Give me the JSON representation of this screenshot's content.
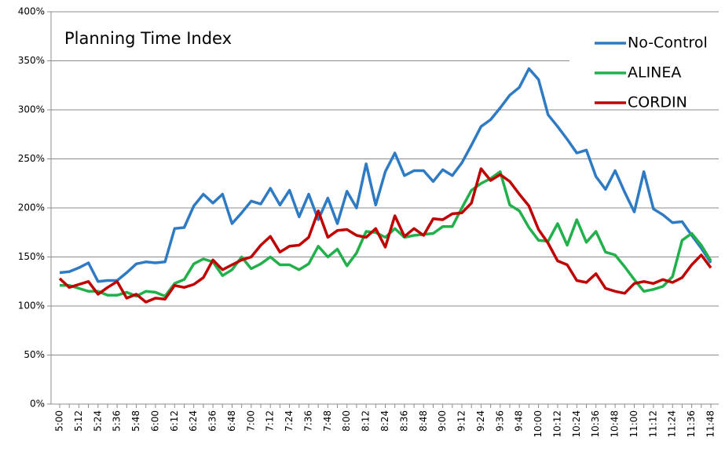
{
  "chart_data": {
    "type": "line",
    "title": "Planning Time Index",
    "categories": [
      "5:00",
      null,
      "5:12",
      null,
      "5:24",
      null,
      "5:36",
      null,
      "5:48",
      null,
      "6:00",
      null,
      "6:12",
      null,
      "6:24",
      null,
      "6:36",
      null,
      "6:48",
      null,
      "7:00",
      null,
      "7:12",
      null,
      "7:24",
      null,
      "7:36",
      null,
      "7:48",
      null,
      "8:00",
      null,
      "8:12",
      null,
      "8:24",
      null,
      "8:36",
      null,
      "8:48",
      null,
      "9:00",
      null,
      "9:12",
      null,
      "9:24",
      null,
      "9:36",
      null,
      "9:48",
      null,
      "10:00",
      null,
      "10:12",
      null,
      "10:24",
      null,
      "10:36",
      null,
      "10:48",
      null,
      "11:00",
      null,
      "11:12",
      null,
      "11:24",
      null,
      "11:36",
      null,
      "11:48"
    ],
    "series": [
      {
        "name": "No-Control",
        "color": "#2e7bc4",
        "values": [
          134,
          135,
          139,
          144,
          125,
          126,
          126,
          134,
          143,
          145,
          144,
          145,
          179,
          180,
          202,
          214,
          205,
          214,
          184,
          195,
          207,
          204,
          220,
          203,
          218,
          191,
          214,
          188,
          210,
          184,
          217,
          200,
          245,
          203,
          237,
          256,
          233,
          238,
          238,
          227,
          239,
          233,
          246,
          264,
          283,
          290,
          302,
          315,
          323,
          342,
          331,
          295,
          283,
          270,
          256,
          259,
          232,
          219,
          238,
          216,
          196,
          237,
          199,
          193,
          185,
          186,
          172,
          159,
          144
        ]
      },
      {
        "name": "ALINEA",
        "color": "#21b04b",
        "values": [
          121,
          121,
          118,
          115,
          115,
          111,
          111,
          114,
          110,
          115,
          114,
          110,
          123,
          127,
          143,
          148,
          145,
          131,
          137,
          150,
          138,
          143,
          150,
          142,
          142,
          137,
          143,
          161,
          150,
          158,
          141,
          154,
          176,
          175,
          170,
          179,
          170,
          172,
          173,
          174,
          181,
          181,
          200,
          218,
          225,
          230,
          237,
          203,
          197,
          180,
          167,
          166,
          184,
          162,
          188,
          165,
          176,
          155,
          152,
          140,
          127,
          115,
          117,
          120,
          130,
          167,
          174,
          162,
          146
        ]
      },
      {
        "name": "CORDIN",
        "color": "#c00000",
        "values": [
          128,
          119,
          122,
          125,
          112,
          119,
          125,
          108,
          112,
          104,
          108,
          107,
          121,
          119,
          122,
          129,
          147,
          137,
          142,
          147,
          150,
          162,
          171,
          155,
          161,
          162,
          170,
          197,
          170,
          177,
          178,
          172,
          170,
          179,
          160,
          192,
          171,
          179,
          172,
          189,
          188,
          194,
          195,
          205,
          240,
          228,
          234,
          227,
          214,
          202,
          178,
          164,
          146,
          142,
          126,
          124,
          133,
          118,
          115,
          113,
          123,
          125,
          123,
          127,
          124,
          129,
          142,
          152,
          139
        ]
      }
    ],
    "ylim": [
      0,
      400
    ],
    "yticks": [
      {
        "value": 0,
        "label": "0%"
      },
      {
        "value": 50,
        "label": "50%"
      },
      {
        "value": 100,
        "label": "100%"
      },
      {
        "value": 150,
        "label": "150%"
      },
      {
        "value": 200,
        "label": "200%"
      },
      {
        "value": 250,
        "label": "250%"
      },
      {
        "value": 300,
        "label": "300%"
      },
      {
        "value": 350,
        "label": "350%"
      },
      {
        "value": 400,
        "label": "400%"
      }
    ],
    "grid": true,
    "legend": "top-right"
  }
}
